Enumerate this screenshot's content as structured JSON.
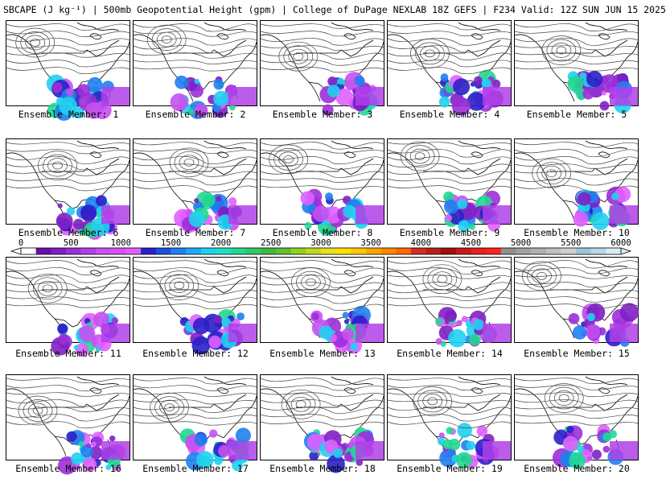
{
  "header": {
    "title": "SBCAPE (J kg⁻¹) | 500mb Geopotential Height (gpm) | College of DuPage NEXLAB 18Z GEFS | F234 Valid: 12Z SUN JUN 15 2025"
  },
  "panels": [
    {
      "label": "Ensemble Member: 1"
    },
    {
      "label": "Ensemble Member: 2"
    },
    {
      "label": "Ensemble Member: 3"
    },
    {
      "label": "Ensemble Member: 4"
    },
    {
      "label": "Ensemble Member: 5"
    },
    {
      "label": "Ensemble Member: 6"
    },
    {
      "label": "Ensemble Member: 7"
    },
    {
      "label": "Ensemble Member: 8"
    },
    {
      "label": "Ensemble Member: 9"
    },
    {
      "label": "Ensemble Member: 10"
    },
    {
      "label": "Ensemble Member: 11"
    },
    {
      "label": "Ensemble Member: 12"
    },
    {
      "label": "Ensemble Member: 13"
    },
    {
      "label": "Ensemble Member: 14"
    },
    {
      "label": "Ensemble Member: 15"
    },
    {
      "label": "Ensemble Member: 16"
    },
    {
      "label": "Ensemble Member: 17"
    },
    {
      "label": "Ensemble Member: 18"
    },
    {
      "label": "Ensemble Member: 19"
    },
    {
      "label": "Ensemble Member: 20"
    }
  ],
  "colorbar": {
    "ticks": [
      "0",
      "500",
      "1000",
      "1500",
      "2000",
      "2500",
      "3000",
      "3500",
      "4000",
      "4500",
      "5000",
      "5500",
      "6000"
    ],
    "min": 0,
    "max": 6000,
    "colors": [
      "#ffffff",
      "#6a0dad",
      "#7f1fc4",
      "#9b2fd8",
      "#b040e8",
      "#c850f0",
      "#d84ef8",
      "#e060ff",
      "#2a1fc8",
      "#1f4fe0",
      "#1f7ff0",
      "#20a8f8",
      "#20d0f0",
      "#20e0c0",
      "#20d890",
      "#30c860",
      "#40b840",
      "#60c030",
      "#90d020",
      "#c0d820",
      "#e8e020",
      "#ffe000",
      "#ffc800",
      "#ffa800",
      "#ff8800",
      "#ff6800",
      "#d03020",
      "#b82018",
      "#a01010",
      "#c81818",
      "#e82020",
      "#ff2020",
      "#909090",
      "#a0a0a0",
      "#b0b0b0",
      "#c0c0c0",
      "#d0d0d0",
      "#9fc6d8",
      "#b8d8e8",
      "#d8ecf4"
    ]
  }
}
